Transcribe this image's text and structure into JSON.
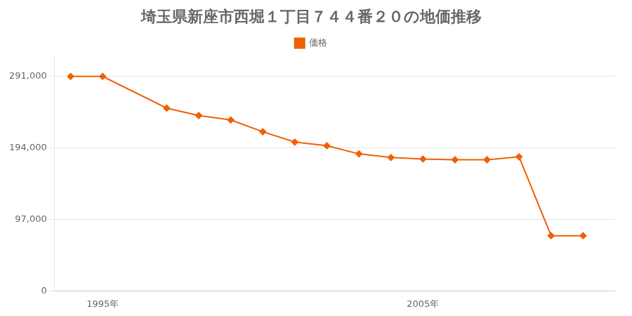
{
  "chart_data": {
    "type": "line",
    "title": "埼玉県新座市西堀１丁目７４４番２０の地価推移",
    "x": [
      1994,
      1995,
      1997,
      1998,
      1999,
      2000,
      2001,
      2002,
      2003,
      2004,
      2005,
      2006,
      2007,
      2008,
      2009,
      2010
    ],
    "series": [
      {
        "name": "価格",
        "color": "#f06000",
        "marker": "diamond",
        "values": [
          291000,
          291000,
          248000,
          238000,
          232000,
          216000,
          202000,
          197000,
          186000,
          181000,
          179000,
          178000,
          178000,
          182000,
          75000,
          75000
        ]
      }
    ],
    "xlim": [
      1993.5,
      2011
    ],
    "xticks": [
      {
        "value": 1995,
        "label": "1995年"
      },
      {
        "value": 2005,
        "label": "2005年"
      }
    ],
    "ylim": [
      0,
      320000
    ],
    "yticks": [
      0,
      {
        "value": 97000,
        "label": "97,000"
      },
      {
        "value": 194000,
        "label": "194,000"
      },
      {
        "value": 291000,
        "label": "291,000"
      }
    ],
    "grid": "y",
    "legend": "top"
  }
}
